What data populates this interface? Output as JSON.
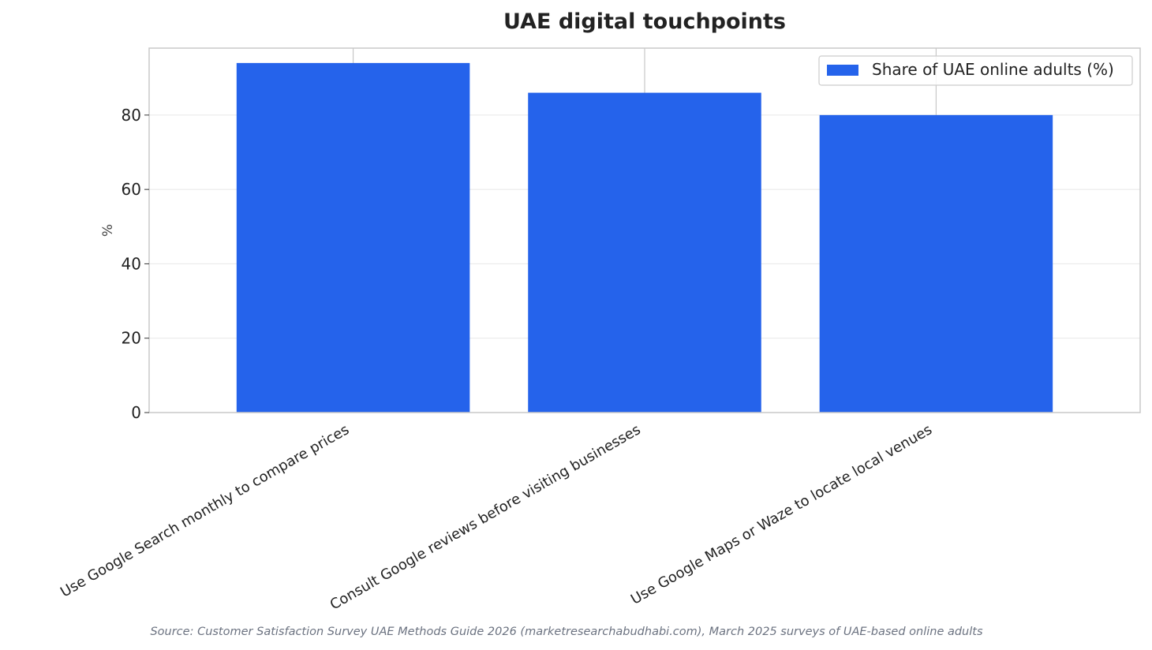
{
  "chart_data": {
    "type": "bar",
    "title": "UAE digital touchpoints",
    "xlabel": "",
    "ylabel": "%",
    "ylim": [
      0,
      98
    ],
    "yticks": [
      0,
      20,
      40,
      60,
      80
    ],
    "categories": [
      "Use Google Search monthly to compare prices",
      "Consult Google reviews before visiting businesses",
      "Use Google Maps or Waze to locate local venues"
    ],
    "series": [
      {
        "name": "Share of UAE online adults (%)",
        "values": [
          94,
          86,
          80
        ],
        "color": "#2563eb"
      }
    ],
    "grid": true,
    "legend_position": "top-right",
    "source": "Source: Customer Satisfaction Survey UAE Methods Guide 2026 (marketresearchabudhabi.com), March 2025 surveys of UAE-based online adults"
  }
}
